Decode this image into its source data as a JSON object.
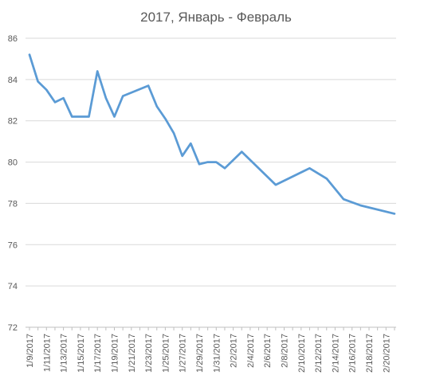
{
  "chart_data": {
    "type": "line",
    "title": "2017, Январь - Февраль",
    "xlabel": "",
    "ylabel": "",
    "ylim": [
      72,
      86
    ],
    "yticks": [
      72,
      74,
      76,
      78,
      80,
      82,
      84,
      86
    ],
    "grid": true,
    "legend": "none",
    "line_color": "#5b9bd5",
    "x_tick_labels": [
      "1/9/2017",
      "1/11/2017",
      "1/13/2017",
      "1/15/2017",
      "1/17/2017",
      "1/19/2017",
      "1/21/2017",
      "1/23/2017",
      "1/25/2017",
      "1/27/2017",
      "1/29/2017",
      "1/31/2017",
      "2/2/2017",
      "2/4/2017",
      "2/6/2017",
      "2/8/2017",
      "2/10/2017",
      "2/12/2017",
      "2/14/2017",
      "2/16/2017",
      "2/18/2017",
      "2/20/2017"
    ],
    "x": [
      "1/9/2017",
      "1/10/2017",
      "1/11/2017",
      "1/12/2017",
      "1/13/2017",
      "1/14/2017",
      "1/16/2017",
      "1/17/2017",
      "1/18/2017",
      "1/19/2017",
      "1/20/2017",
      "1/23/2017",
      "1/24/2017",
      "1/25/2017",
      "1/26/2017",
      "1/27/2017",
      "1/28/2017",
      "1/29/2017",
      "1/30/2017",
      "1/31/2017",
      "2/1/2017",
      "2/3/2017",
      "2/7/2017",
      "2/11/2017",
      "2/13/2017",
      "2/15/2017",
      "2/17/2017",
      "2/21/2017"
    ],
    "values": [
      85.2,
      83.9,
      83.5,
      82.9,
      83.1,
      82.2,
      82.2,
      84.4,
      83.1,
      82.2,
      83.2,
      83.7,
      82.7,
      82.1,
      81.4,
      80.3,
      80.9,
      79.9,
      80.0,
      80.0,
      79.7,
      80.5,
      78.9,
      79.7,
      79.2,
      78.2,
      77.9,
      77.5
    ]
  }
}
